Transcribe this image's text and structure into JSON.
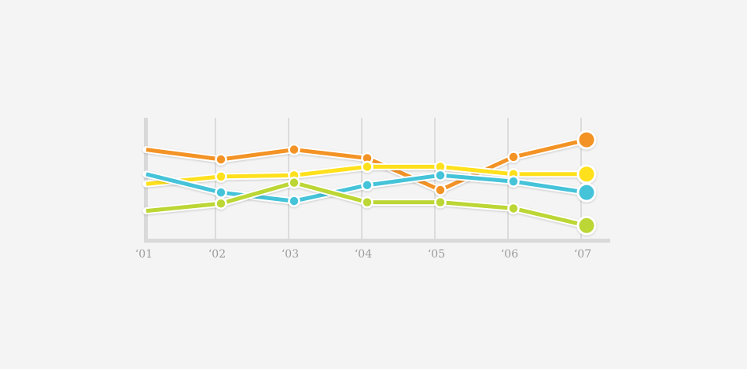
{
  "chart_data": {
    "type": "line",
    "title": "",
    "xlabel": "",
    "ylabel": "",
    "categories": [
      "‘01",
      "‘02",
      "‘03",
      "‘04",
      "‘05",
      "‘06",
      "‘07"
    ],
    "ylim": [
      0,
      100
    ],
    "grid": "vertical",
    "legend": "none",
    "series": [
      {
        "color": "#f39325",
        "values": [
          74,
          66,
          74,
          67,
          41,
          68,
          82
        ]
      },
      {
        "color": "#ffe01a",
        "values": [
          46,
          52,
          53,
          60,
          60,
          54,
          54
        ]
      },
      {
        "color": "#45c3d9",
        "values": [
          54,
          39,
          32,
          45,
          53,
          48,
          39
        ]
      },
      {
        "color": "#bcd634",
        "values": [
          24,
          30,
          47,
          31,
          31,
          26,
          12
        ]
      }
    ]
  }
}
